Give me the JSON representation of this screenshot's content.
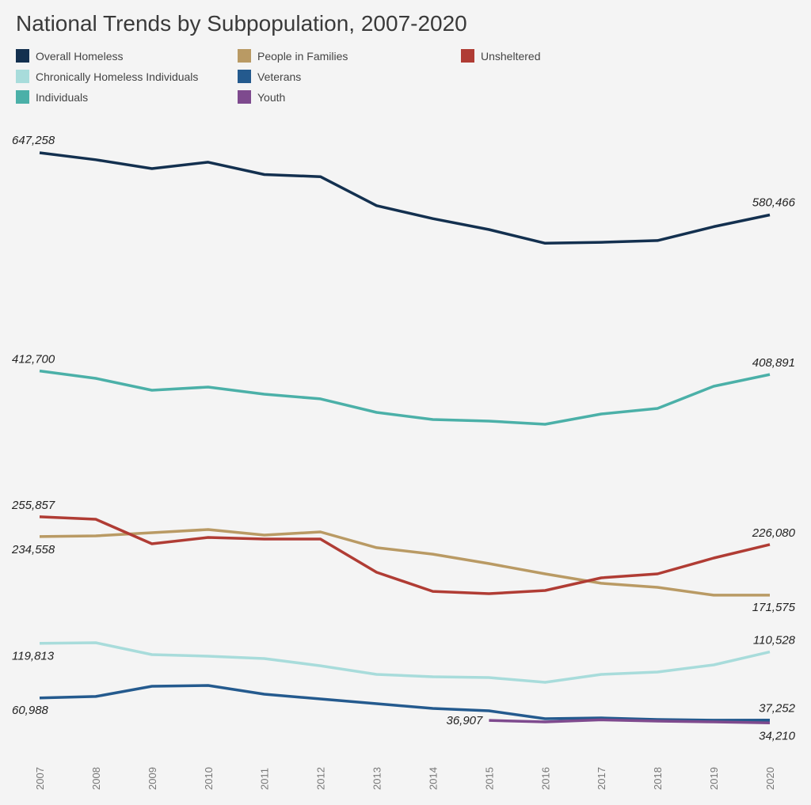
{
  "chart_data": {
    "type": "line",
    "title": "National Trends by Subpopulation, 2007-2020",
    "xlabel": "",
    "ylabel": "",
    "x": [
      "2007",
      "2008",
      "2009",
      "2010",
      "2011",
      "2012",
      "2013",
      "2014",
      "2015",
      "2016",
      "2017",
      "2018",
      "2019",
      "2020"
    ],
    "ylim": [
      0,
      660000
    ],
    "grid": false,
    "legend_position": "top",
    "series": [
      {
        "name": "Overall Homeless",
        "color": "#13304f",
        "values": [
          647258,
          639784,
          630227,
          637077,
          623788,
          621553,
          590364,
          576450,
          564708,
          549928,
          550996,
          552830,
          567715,
          580466
        ]
      },
      {
        "name": "Chronically Homeless Individuals",
        "color": "#a8dcdb",
        "values": [
          119813,
          120400,
          107700,
          106000,
          103400,
          95700,
          86400,
          83800,
          83000,
          77900,
          86400,
          88900,
          96600,
          110528
        ]
      },
      {
        "name": "Individuals",
        "color": "#4bb0a8",
        "values": [
          412700,
          404700,
          391900,
          395300,
          387700,
          382600,
          368100,
          360400,
          358700,
          355300,
          366400,
          372300,
          396200,
          408891
        ]
      },
      {
        "name": "People in Families",
        "color": "#b99a64",
        "values": [
          234558,
          235300,
          238700,
          242100,
          236200,
          239600,
          222600,
          215700,
          205500,
          194500,
          184300,
          180000,
          171600,
          171575
        ]
      },
      {
        "name": "Veterans",
        "color": "#245a8e",
        "values": [
          60988,
          62600,
          73600,
          74500,
          65100,
          60000,
          54900,
          49800,
          47200,
          38700,
          39600,
          37900,
          37100,
          37252
        ]
      },
      {
        "name": "Youth",
        "color": "#7e4a8e",
        "values": [
          null,
          null,
          null,
          null,
          null,
          null,
          null,
          null,
          36907,
          35300,
          37500,
          36200,
          35300,
          34210
        ]
      },
      {
        "name": "Unsheltered",
        "color": "#b03c34",
        "values": [
          255857,
          253200,
          226800,
          233600,
          231900,
          231900,
          196200,
          175700,
          173200,
          176600,
          190200,
          194500,
          211500,
          226080
        ]
      }
    ],
    "annotations": [
      {
        "series": "Overall Homeless",
        "year": "2007",
        "text": "647,258"
      },
      {
        "series": "Overall Homeless",
        "year": "2020",
        "text": "580,466"
      },
      {
        "series": "Individuals",
        "year": "2007",
        "text": "412,700"
      },
      {
        "series": "Individuals",
        "year": "2020",
        "text": "408,891"
      },
      {
        "series": "Unsheltered",
        "year": "2007",
        "text": "255,857"
      },
      {
        "series": "People in Families",
        "year": "2007",
        "text": "234,558"
      },
      {
        "series": "Unsheltered",
        "year": "2020",
        "text": "226,080"
      },
      {
        "series": "People in Families",
        "year": "2020",
        "text": "171,575"
      },
      {
        "series": "Chronically Homeless Individuals",
        "year": "2007",
        "text": "119,813"
      },
      {
        "series": "Chronically Homeless Individuals",
        "year": "2020",
        "text": "110,528"
      },
      {
        "series": "Veterans",
        "year": "2007",
        "text": "60,988"
      },
      {
        "series": "Veterans",
        "year": "2020",
        "text": "37,252"
      },
      {
        "series": "Youth",
        "year": "2015",
        "text": "36,907"
      },
      {
        "series": "Youth",
        "year": "2020",
        "text": "34,210"
      }
    ]
  }
}
